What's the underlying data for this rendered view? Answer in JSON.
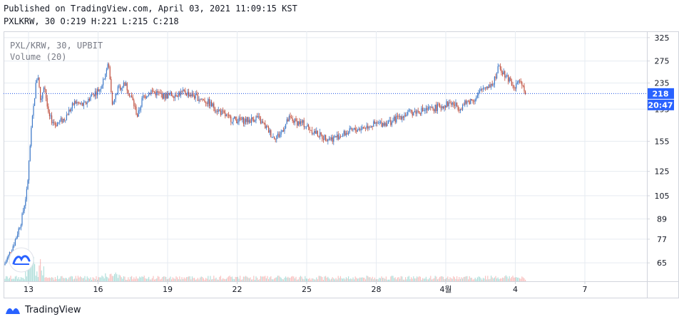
{
  "header": {
    "published": "Published on TradingView.com, April 03, 2021 11:09:15 KST",
    "symbol_interval": "PXLKRW, 30",
    "ohlc": "O:219 H:221 L:215 C:218"
  },
  "legend": {
    "main": "PXL/KRW, 30, UPBIT",
    "volume": "Volume (20)"
  },
  "price_badge": {
    "value": "218",
    "countdown": "20:47"
  },
  "footer": {
    "brand": "TradingView"
  },
  "colors": {
    "up": "#26a69a",
    "down": "#ef5350",
    "candle_up_fill": "#3c78c8",
    "candle_down_fill": "#c04f3e",
    "price_line": "#1e53e5",
    "grid": "#e6ebf1",
    "axis_text": "#131722"
  },
  "chart_data": {
    "type": "candlestick",
    "symbol": "PXL/KRW",
    "exchange": "UPBIT",
    "interval": "30",
    "y_scale": "log",
    "y_ticks": [
      65,
      77,
      89,
      105,
      125,
      155,
      195,
      235,
      275,
      325
    ],
    "ylim": [
      57,
      340
    ],
    "x_ticks": [
      "13",
      "16",
      "19",
      "22",
      "25",
      "28",
      "4월",
      "4",
      "7"
    ],
    "last_price": 218,
    "last_ohlc": {
      "open": 219,
      "high": 221,
      "low": 215,
      "close": 218
    },
    "price_path_approx": [
      {
        "x": "12",
        "close": 64
      },
      {
        "x": "12.5",
        "close": 85
      },
      {
        "x": "13",
        "close": 120
      },
      {
        "x": "13.3",
        "close": 252
      },
      {
        "x": "13.7",
        "close": 190
      },
      {
        "x": "14.5",
        "close": 180
      },
      {
        "x": "15.5",
        "close": 205
      },
      {
        "x": "16.5",
        "close": 235
      },
      {
        "x": "17.5",
        "close": 215
      },
      {
        "x": "18.5",
        "close": 220
      },
      {
        "x": "20",
        "close": 212
      },
      {
        "x": "21.5",
        "close": 190
      },
      {
        "x": "23",
        "close": 175
      },
      {
        "x": "24.5",
        "close": 178
      },
      {
        "x": "26",
        "close": 158
      },
      {
        "x": "27.5",
        "close": 175
      },
      {
        "x": "29",
        "close": 185
      },
      {
        "x": "31",
        "close": 195
      },
      {
        "x": "4월",
        "close": 205
      },
      {
        "x": "2",
        "close": 270
      },
      {
        "x": "3",
        "close": 218
      }
    ],
    "volume": {
      "label": "Volume (20)",
      "spike_near": "13"
    }
  }
}
